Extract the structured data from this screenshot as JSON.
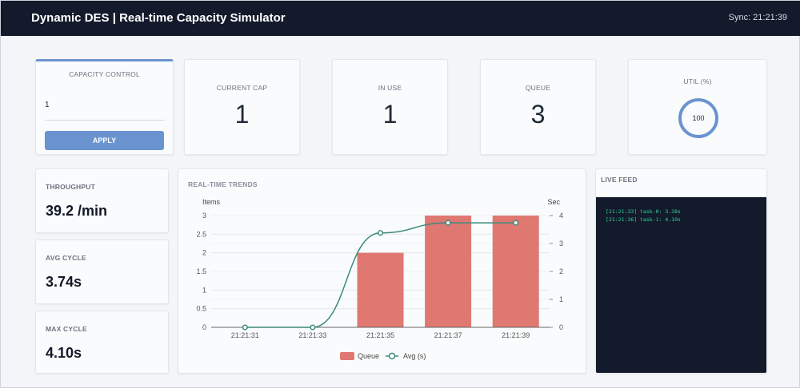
{
  "header": {
    "title": "Dynamic DES | Real-time Capacity Simulator",
    "sync": "Sync: 21:21:39"
  },
  "capacity_control": {
    "label": "CAPACITY CONTROL",
    "value": "1",
    "apply_label": "APPLY"
  },
  "metrics": [
    {
      "label": "CURRENT CAP",
      "value": "1"
    },
    {
      "label": "IN USE",
      "value": "1"
    },
    {
      "label": "QUEUE",
      "value": "3"
    }
  ],
  "util": {
    "label": "UTIL (%)",
    "value": "100",
    "percent": 100
  },
  "stats": [
    {
      "label": "THROUGHPUT",
      "value": "39.2 /min"
    },
    {
      "label": "AVG CYCLE",
      "value": "3.74s"
    },
    {
      "label": "MAX CYCLE",
      "value": "4.10s"
    }
  ],
  "live_feed": {
    "label": "LIVE FEED",
    "lines": [
      "[21:21:33] task-0: 3.38s",
      "[21:21:36] task-1: 4.10s"
    ]
  },
  "colors": {
    "header": "#131a2b",
    "accent": "#6b93cf",
    "queue": "#e07872",
    "avg": "#3a8a7a"
  },
  "chart_data": {
    "type": "bar+line",
    "title": "REAL-TIME TRENDS",
    "categories": [
      "21:21:31",
      "21:21:33",
      "21:21:35",
      "21:21:37",
      "21:21:39"
    ],
    "y_left": {
      "label": "Items",
      "range": [
        0,
        3
      ],
      "ticks": [
        "0",
        "0.5",
        "1",
        "1.5",
        "2",
        "2.5",
        "3"
      ]
    },
    "y_right": {
      "label": "Sec",
      "range": [
        0,
        4
      ],
      "ticks": [
        "0",
        "1",
        "2",
        "3",
        "4"
      ]
    },
    "series": [
      {
        "name": "Queue",
        "type": "bar",
        "axis": "left",
        "values": [
          0,
          0,
          2,
          3,
          3
        ]
      },
      {
        "name": "Avg (s)",
        "type": "line",
        "axis": "right",
        "values": [
          0,
          0,
          3.38,
          3.74,
          3.74
        ]
      }
    ],
    "legend": "bottom",
    "grid": true
  }
}
